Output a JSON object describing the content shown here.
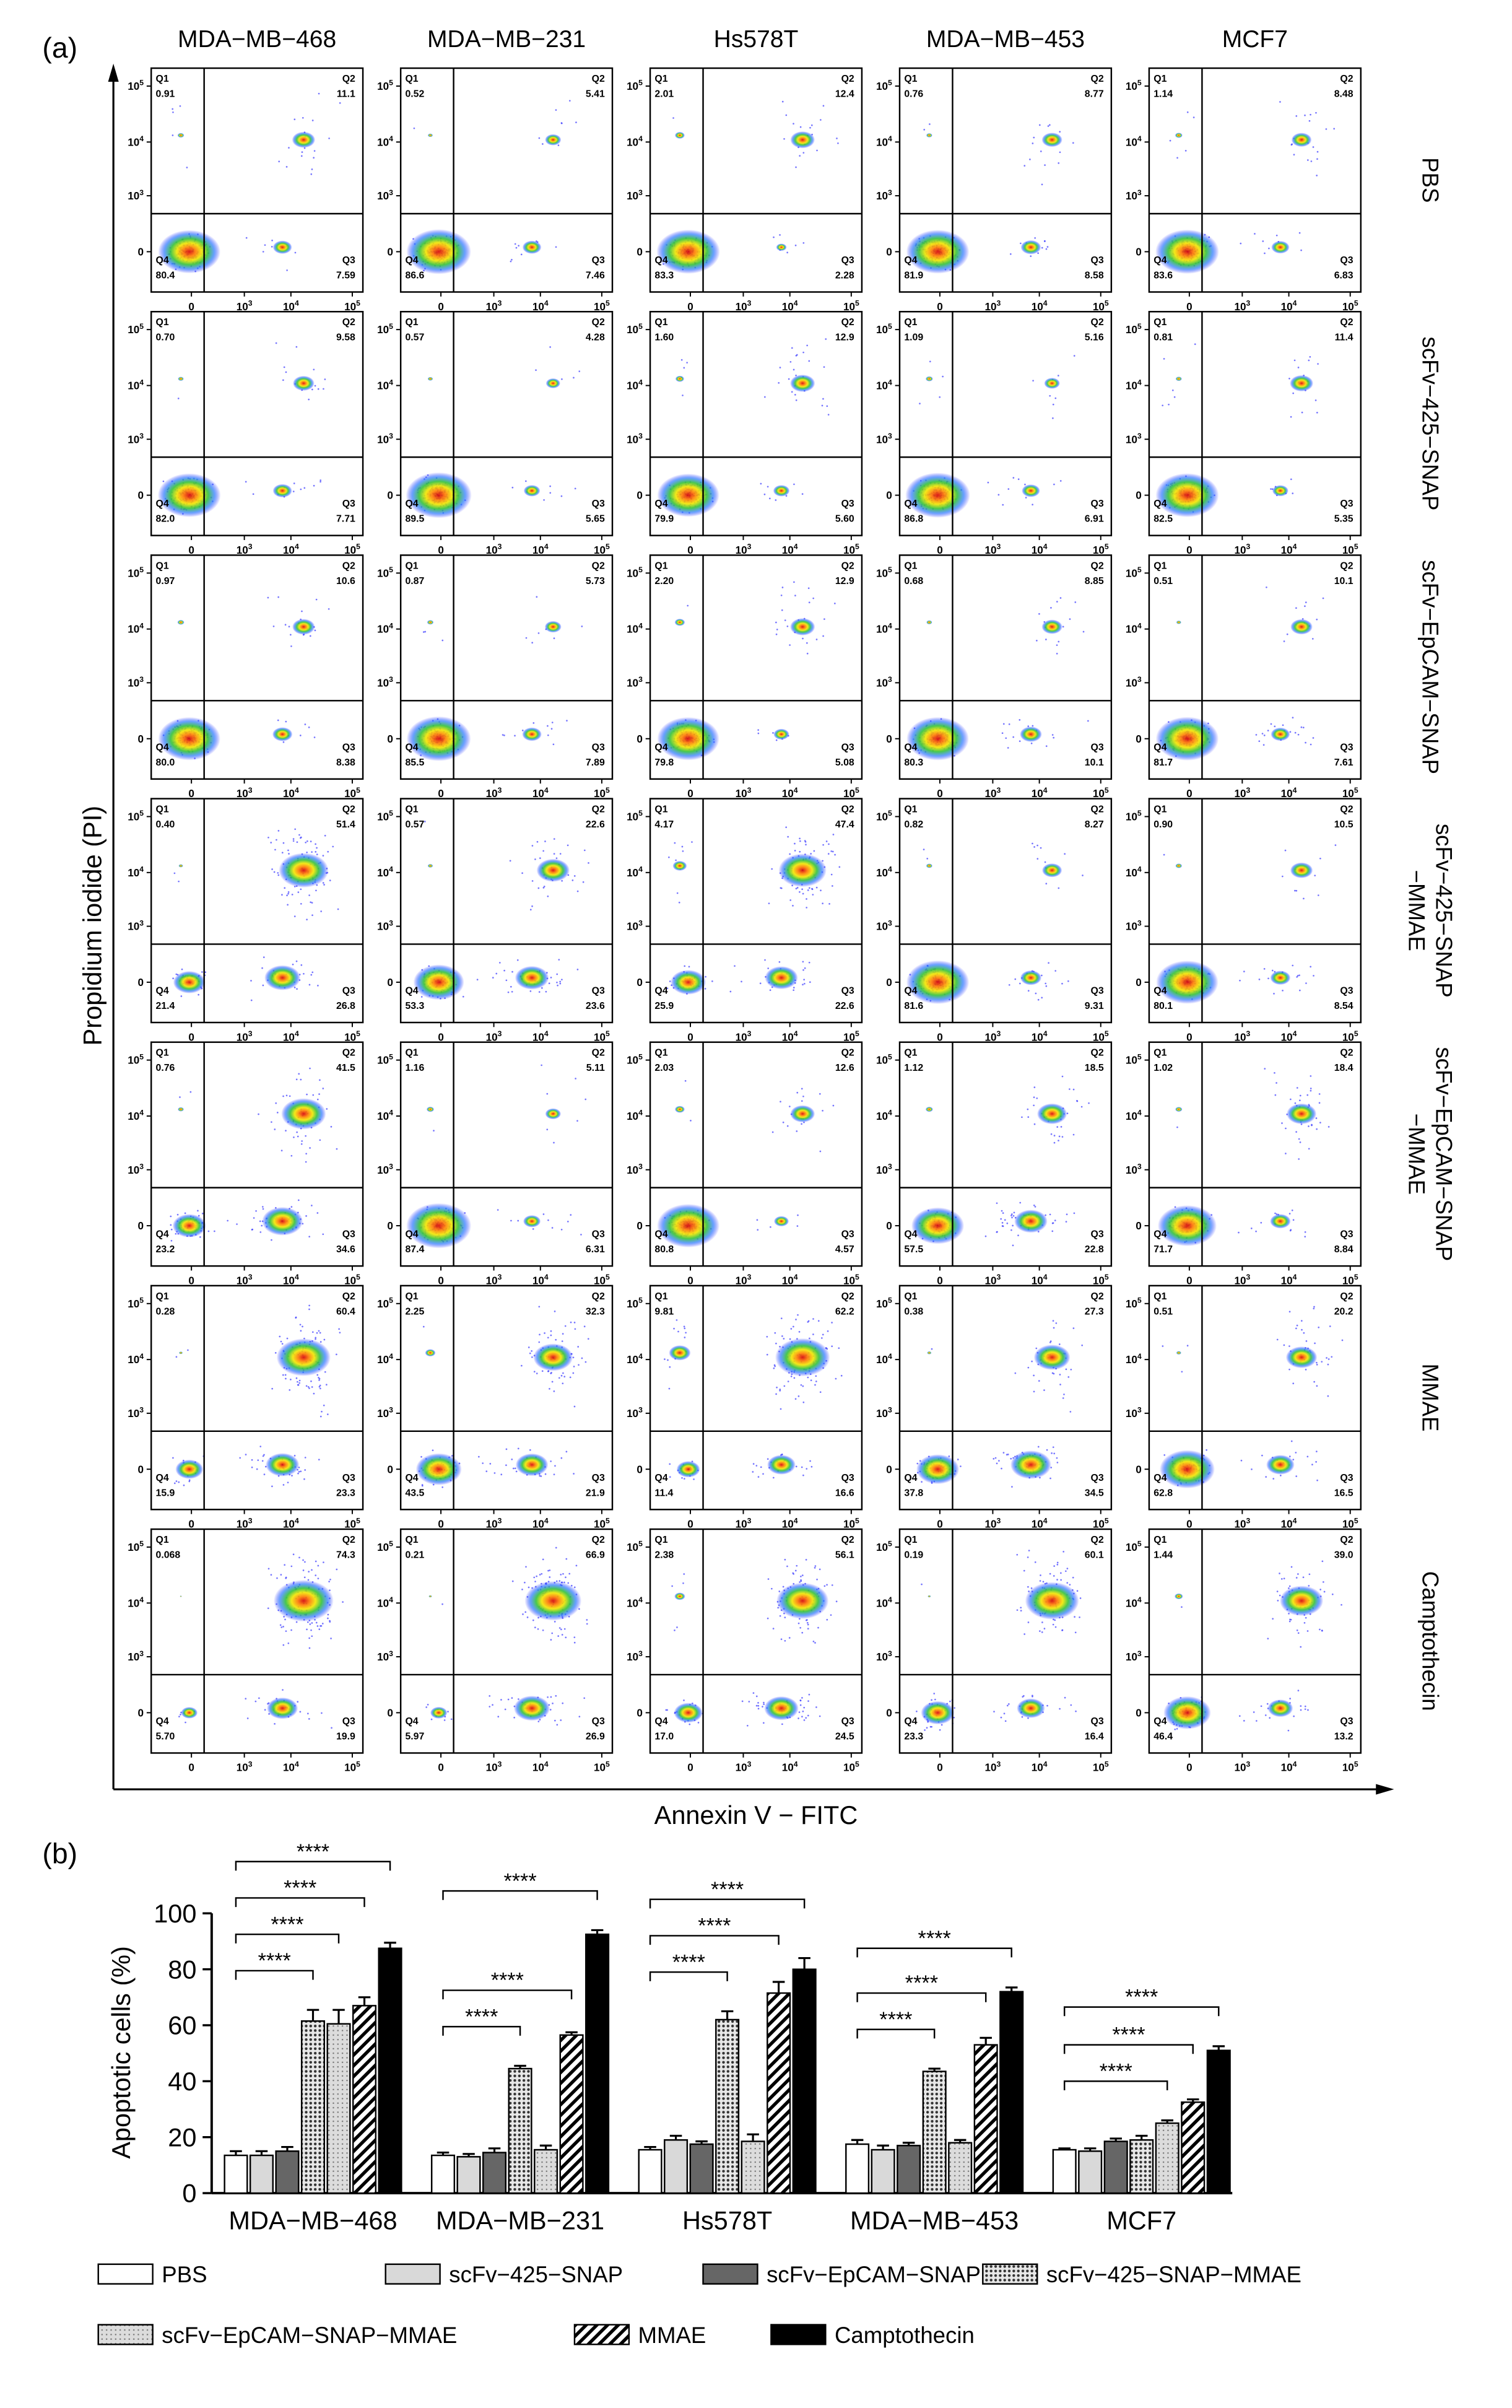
{
  "panel_a": {
    "label": "(a)",
    "columns": [
      "MDA−MB−468",
      "MDA−MB−231",
      "Hs578T",
      "MDA−MB−453",
      "MCF7"
    ],
    "rows": [
      [
        "PBS"
      ],
      [
        "scFv−425−SNAP"
      ],
      [
        "scFv−EpCAM−SNAP"
      ],
      [
        "scFv−425−SNAP",
        "−MMAE"
      ],
      [
        "scFv−EpCAM−SNAP",
        "−MMAE"
      ],
      [
        "MMAE"
      ],
      [
        "Camptothecin"
      ]
    ],
    "quadrant_names": [
      "Q1",
      "Q2",
      "Q3",
      "Q4"
    ],
    "plots": [
      [
        [
          "0.91",
          "11.1",
          "7.59",
          "80.4"
        ],
        [
          "0.52",
          "5.41",
          "7.46",
          "86.6"
        ],
        [
          "2.01",
          "12.4",
          "2.28",
          "83.3"
        ],
        [
          "0.76",
          "8.77",
          "8.58",
          "81.9"
        ],
        [
          "1.14",
          "8.48",
          "6.83",
          "83.6"
        ]
      ],
      [
        [
          "0.70",
          "9.58",
          "7.71",
          "82.0"
        ],
        [
          "0.57",
          "4.28",
          "5.65",
          "89.5"
        ],
        [
          "1.60",
          "12.9",
          "5.60",
          "79.9"
        ],
        [
          "1.09",
          "5.16",
          "6.91",
          "86.8"
        ],
        [
          "0.81",
          "11.4",
          "5.35",
          "82.5"
        ]
      ],
      [
        [
          "0.97",
          "10.6",
          "8.38",
          "80.0"
        ],
        [
          "0.87",
          "5.73",
          "7.89",
          "85.5"
        ],
        [
          "2.20",
          "12.9",
          "5.08",
          "79.8"
        ],
        [
          "0.68",
          "8.85",
          "10.1",
          "80.3"
        ],
        [
          "0.51",
          "10.1",
          "7.61",
          "81.7"
        ]
      ],
      [
        [
          "0.40",
          "51.4",
          "26.8",
          "21.4"
        ],
        [
          "0.57",
          "22.6",
          "23.6",
          "53.3"
        ],
        [
          "4.17",
          "47.4",
          "22.6",
          "25.9"
        ],
        [
          "0.82",
          "8.27",
          "9.31",
          "81.6"
        ],
        [
          "0.90",
          "10.5",
          "8.54",
          "80.1"
        ]
      ],
      [
        [
          "0.76",
          "41.5",
          "34.6",
          "23.2"
        ],
        [
          "1.16",
          "5.11",
          "6.31",
          "87.4"
        ],
        [
          "2.03",
          "12.6",
          "4.57",
          "80.8"
        ],
        [
          "1.12",
          "18.5",
          "22.8",
          "57.5"
        ],
        [
          "1.02",
          "18.4",
          "8.84",
          "71.7"
        ]
      ],
      [
        [
          "0.28",
          "60.4",
          "23.3",
          "15.9"
        ],
        [
          "2.25",
          "32.3",
          "21.9",
          "43.5"
        ],
        [
          "9.81",
          "62.2",
          "16.6",
          "11.4"
        ],
        [
          "0.38",
          "27.3",
          "34.5",
          "37.8"
        ],
        [
          "0.51",
          "20.2",
          "16.5",
          "62.8"
        ]
      ],
      [
        [
          "0.068",
          "74.3",
          "19.9",
          "5.70"
        ],
        [
          "0.21",
          "66.9",
          "26.9",
          "5.97"
        ],
        [
          "2.38",
          "56.1",
          "24.5",
          "17.0"
        ],
        [
          "0.19",
          "60.1",
          "16.4",
          "23.3"
        ],
        [
          "1.44",
          "39.0",
          "13.2",
          "46.4"
        ]
      ]
    ],
    "tick_labels": [
      {
        "base": "0"
      },
      {
        "base": "10",
        "sup": "3"
      },
      {
        "base": "10",
        "sup": "4"
      },
      {
        "base": "10",
        "sup": "5"
      }
    ],
    "xlabel": "Annexin V − FITC",
    "ylabel": "Propidium iodide (PI)"
  },
  "chart_data": {
    "type": "bar",
    "label": "(b)",
    "ylabel": "Apoptotic cells (%)",
    "categories": [
      "MDA−MB−468",
      "MDA−MB−231",
      "Hs578T",
      "MDA−MB−453",
      "MCF7"
    ],
    "ylim": [
      0,
      100
    ],
    "yticks": [
      0,
      20,
      40,
      60,
      80,
      100
    ],
    "series": [
      {
        "name": "PBS",
        "color": "#ffffff",
        "pattern": "none",
        "values": [
          13.5,
          13.5,
          15.5,
          17.5,
          15.5
        ],
        "errors": [
          1.5,
          1,
          1,
          1.5,
          0.5
        ]
      },
      {
        "name": "scFv−425−SNAP",
        "color": "#d9d9d9",
        "pattern": "none",
        "values": [
          13.5,
          13,
          19,
          15.5,
          15
        ],
        "errors": [
          1.5,
          1,
          1.5,
          1.5,
          1
        ]
      },
      {
        "name": "scFv−EpCAM−SNAP",
        "color": "#666666",
        "pattern": "none",
        "values": [
          15,
          14.5,
          17.5,
          17,
          18.5
        ],
        "errors": [
          1.5,
          1.5,
          1,
          1,
          1
        ]
      },
      {
        "name": "scFv−425−SNAP−MMAE",
        "color": "#9a9a9a",
        "pattern": "dots",
        "values": [
          61.5,
          44.5,
          62,
          43.5,
          19
        ],
        "errors": [
          4,
          1,
          3,
          1,
          1.5
        ]
      },
      {
        "name": "scFv−EpCAM−SNAP−MMAE",
        "color": "#c8c8c8",
        "pattern": "fine-dots",
        "values": [
          60.5,
          15.5,
          18.5,
          18,
          25
        ],
        "errors": [
          5,
          1.5,
          2.5,
          1,
          1
        ]
      },
      {
        "name": "MMAE",
        "color": "#000000",
        "pattern": "hatch",
        "values": [
          67,
          56.5,
          71.5,
          53,
          32.5
        ],
        "errors": [
          3,
          1,
          4,
          2.5,
          1
        ]
      },
      {
        "name": "Camptothecin",
        "color": "#000000",
        "pattern": "none",
        "values": [
          87.5,
          92.5,
          80,
          72,
          51
        ],
        "errors": [
          2,
          1.5,
          4,
          1.5,
          1.5
        ]
      }
    ],
    "significance": [
      {
        "category": 0,
        "from": 0,
        "to": 3,
        "label": "****"
      },
      {
        "category": 0,
        "from": 0,
        "to": 4,
        "label": "****"
      },
      {
        "category": 0,
        "from": 0,
        "to": 5,
        "label": "****"
      },
      {
        "category": 0,
        "from": 0,
        "to": 6,
        "label": "****"
      },
      {
        "category": 1,
        "from": 0,
        "to": 3,
        "label": "****"
      },
      {
        "category": 1,
        "from": 0,
        "to": 5,
        "label": "****"
      },
      {
        "category": 1,
        "from": 0,
        "to": 6,
        "label": "****"
      },
      {
        "category": 2,
        "from": 0,
        "to": 3,
        "label": "****"
      },
      {
        "category": 2,
        "from": 0,
        "to": 5,
        "label": "****"
      },
      {
        "category": 2,
        "from": 0,
        "to": 6,
        "label": "****"
      },
      {
        "category": 3,
        "from": 0,
        "to": 3,
        "label": "****"
      },
      {
        "category": 3,
        "from": 0,
        "to": 5,
        "label": "****"
      },
      {
        "category": 3,
        "from": 0,
        "to": 6,
        "label": "****"
      },
      {
        "category": 4,
        "from": 0,
        "to": 4,
        "label": "****"
      },
      {
        "category": 4,
        "from": 0,
        "to": 5,
        "label": "****"
      },
      {
        "category": 4,
        "from": 0,
        "to": 6,
        "label": "****"
      }
    ]
  }
}
